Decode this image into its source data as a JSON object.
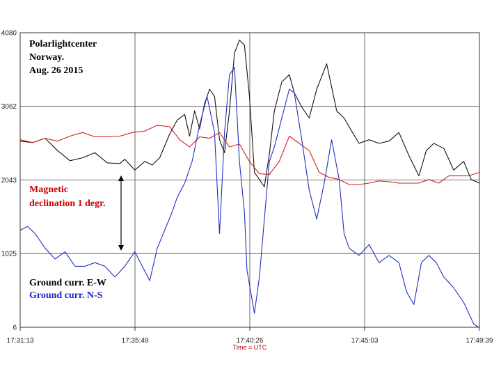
{
  "chart_data": {
    "type": "line",
    "xlabel": "Time = UTC",
    "x_ticks": [
      "17:31:13",
      "17:35:49",
      "17:40:26",
      "17:45:03",
      "17:49:39"
    ],
    "y_ticks": [
      6,
      1025,
      2043,
      3062,
      4080
    ],
    "ylim": [
      6,
      4080
    ],
    "x_range_minutes": [
      0,
      18.43
    ],
    "grid": true,
    "annotations": {
      "station_line1": "Polarlightcenter",
      "station_line2": "Norway.",
      "station_line3": "Aug. 26 2015",
      "magnetic_line1": "Magnetic",
      "magnetic_line2": "declination  1 degr.",
      "ground_ew": "Ground curr. E-W",
      "ground_ns": "Ground curr. N-S"
    },
    "colors": {
      "ew": "#111111",
      "ns": "#2030c0",
      "magnetic": "#d02020",
      "magnetic_text": "#cc0000",
      "ns_text": "#2020c8"
    },
    "series": [
      {
        "name": "Ground curr. E-W",
        "x": [
          0,
          0.5,
          1,
          1.5,
          2,
          2.5,
          3,
          3.5,
          4,
          4.2,
          4.6,
          5,
          5.3,
          5.6,
          6,
          6.3,
          6.6,
          6.8,
          7,
          7.2,
          7.4,
          7.6,
          7.8,
          8,
          8.2,
          8.4,
          8.6,
          8.8,
          9.0,
          9.2,
          9.4,
          9.6,
          9.8,
          10.0,
          10.2,
          10.5,
          10.8,
          11.0,
          11.3,
          11.6,
          11.9,
          12.3,
          12.7,
          13.0,
          13.3,
          13.6,
          14.0,
          14.4,
          14.8,
          15.2,
          15.6,
          16.0,
          16.3,
          16.6,
          17.0,
          17.4,
          17.8,
          18.1,
          18.43
        ],
        "values": [
          2580,
          2560,
          2620,
          2450,
          2310,
          2350,
          2420,
          2280,
          2270,
          2330,
          2180,
          2300,
          2250,
          2350,
          2680,
          2870,
          2950,
          2650,
          3000,
          2750,
          3100,
          3300,
          3200,
          2600,
          2420,
          3000,
          3800,
          3980,
          3910,
          3200,
          2150,
          2050,
          1950,
          2400,
          3000,
          3400,
          3500,
          3250,
          3050,
          2900,
          3300,
          3650,
          3000,
          2900,
          2720,
          2550,
          2600,
          2550,
          2580,
          2700,
          2380,
          2100,
          2450,
          2550,
          2480,
          2180,
          2300,
          2050,
          2000
        ]
      },
      {
        "name": "Ground curr. N-S",
        "x": [
          0,
          0.3,
          0.6,
          1.0,
          1.4,
          1.8,
          2.2,
          2.6,
          3.0,
          3.4,
          3.8,
          4.2,
          4.6,
          4.9,
          5.2,
          5.5,
          5.8,
          6.1,
          6.3,
          6.6,
          6.9,
          7.2,
          7.5,
          7.8,
          8.0,
          8.2,
          8.4,
          8.6,
          8.8,
          9.0,
          9.1,
          9.4,
          9.6,
          9.8,
          10.0,
          10.2,
          10.5,
          10.8,
          11.0,
          11.3,
          11.6,
          11.9,
          12.2,
          12.5,
          12.8,
          13.0,
          13.2,
          13.6,
          14.0,
          14.4,
          14.8,
          15.2,
          15.5,
          15.8,
          16.1,
          16.4,
          16.7,
          17.0,
          17.4,
          17.8,
          18.2,
          18.43
        ],
        "values": [
          1350,
          1400,
          1300,
          1100,
          950,
          1050,
          850,
          850,
          900,
          850,
          700,
          850,
          1050,
          850,
          650,
          1100,
          1350,
          1600,
          1800,
          2000,
          2300,
          2800,
          3200,
          2700,
          1300,
          2700,
          3500,
          3600,
          2300,
          1600,
          800,
          200,
          700,
          1500,
          2300,
          2500,
          2900,
          3300,
          3250,
          2600,
          1900,
          1500,
          2000,
          2600,
          2050,
          1300,
          1100,
          1000,
          1150,
          900,
          1000,
          900,
          500,
          320,
          900,
          1000,
          900,
          700,
          550,
          350,
          50,
          0
        ]
      },
      {
        "name": "Magnetic declination  1 degr.",
        "x": [
          0,
          0.5,
          1,
          1.5,
          2,
          2.5,
          3,
          3.5,
          4,
          4.5,
          5,
          5.5,
          6,
          6.4,
          6.8,
          7.2,
          7.6,
          8,
          8.4,
          8.8,
          9.2,
          9.6,
          10,
          10.4,
          10.8,
          11.2,
          11.6,
          12,
          12.4,
          12.8,
          13.2,
          13.6,
          14,
          14.4,
          14.8,
          15.2,
          15.6,
          16,
          16.4,
          16.8,
          17.2,
          17.6,
          18,
          18.43
        ],
        "values": [
          2600,
          2560,
          2620,
          2580,
          2650,
          2700,
          2640,
          2640,
          2650,
          2700,
          2720,
          2800,
          2780,
          2600,
          2500,
          2640,
          2620,
          2700,
          2500,
          2540,
          2300,
          2130,
          2120,
          2300,
          2650,
          2550,
          2450,
          2150,
          2080,
          2050,
          1980,
          1980,
          2000,
          2030,
          2020,
          2000,
          2000,
          2000,
          2050,
          2000,
          2100,
          2100,
          2100,
          2150
        ]
      }
    ]
  }
}
